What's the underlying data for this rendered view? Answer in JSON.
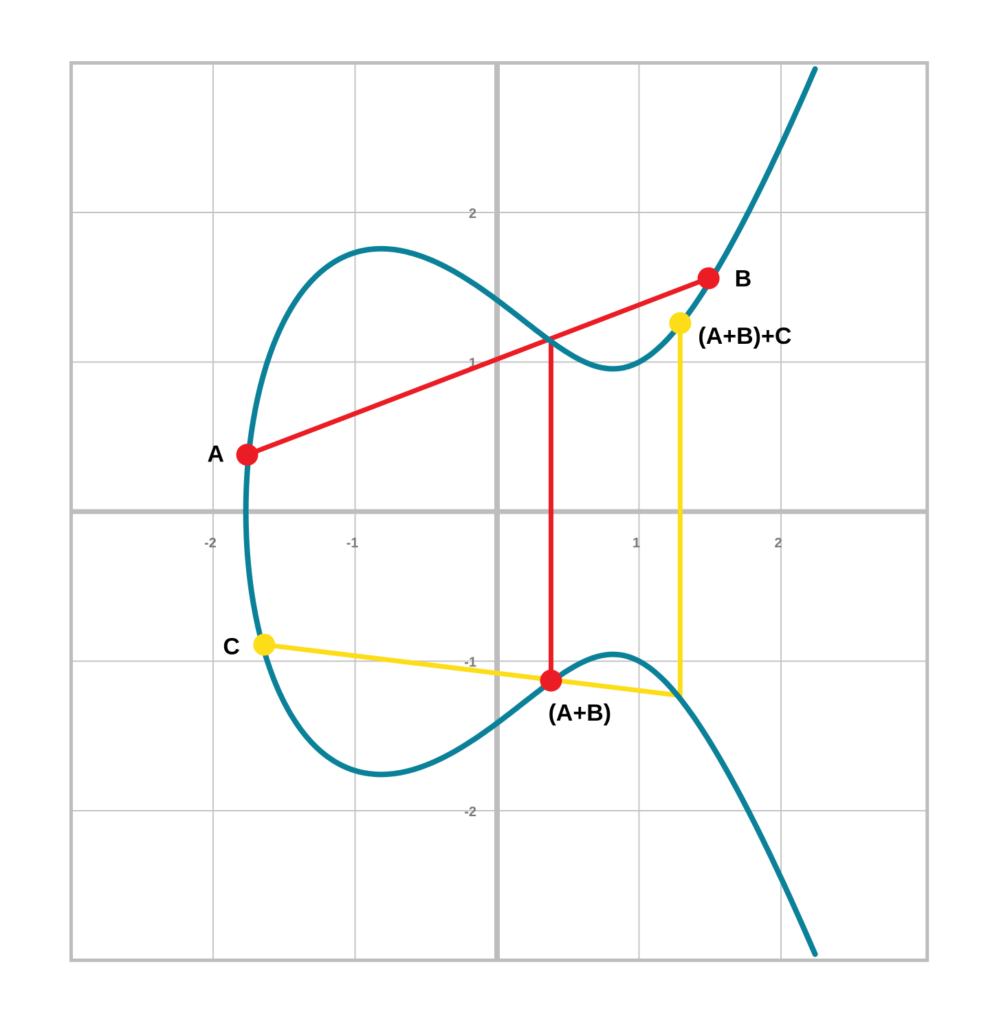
{
  "chart_data": {
    "type": "line",
    "curve": {
      "equation_form": "y^2 = x^3 + a*x + b",
      "a": -2,
      "b": 2
    },
    "xlim": [
      -3,
      3
    ],
    "ylim": [
      -3,
      3
    ],
    "grid": true,
    "x_ticks": [
      -2,
      -1,
      1,
      2
    ],
    "y_ticks": [
      2,
      1,
      -1,
      -2
    ],
    "x_tick_labels": [
      "-2",
      "-1",
      "1",
      "2"
    ],
    "y_tick_labels": [
      "2",
      "1",
      "-1",
      "-2"
    ],
    "points": [
      {
        "label": "A",
        "x": -1.76,
        "y": 0.38,
        "color": "red"
      },
      {
        "label": "B",
        "x": 1.49,
        "y": 1.56,
        "color": "red"
      },
      {
        "label": "(A+B)",
        "x": 0.38,
        "y": -1.13,
        "color": "red"
      },
      {
        "label": "C",
        "x": -1.64,
        "y": -0.89,
        "color": "yellow"
      },
      {
        "label": "(A+B)+C",
        "x": 1.29,
        "y": 1.26,
        "color": "yellow"
      }
    ],
    "segments": [
      {
        "color": "red",
        "from": [
          -1.76,
          0.38
        ],
        "to": [
          1.49,
          1.56
        ]
      },
      {
        "color": "red",
        "from": [
          0.38,
          1.15
        ],
        "to": [
          0.38,
          -1.13
        ]
      },
      {
        "color": "yellow",
        "from": [
          -1.64,
          -0.89
        ],
        "to": [
          1.29,
          -1.23
        ]
      },
      {
        "color": "yellow",
        "from": [
          1.29,
          -1.23
        ],
        "to": [
          1.29,
          1.26
        ]
      }
    ]
  },
  "colors": {
    "curve": "#0a8199",
    "red": "#ec1c24",
    "yellow": "#fcdd17",
    "grid": "#c4c4c4",
    "axis": "#bdbdbd",
    "tick_label": "#7a7a7a"
  }
}
